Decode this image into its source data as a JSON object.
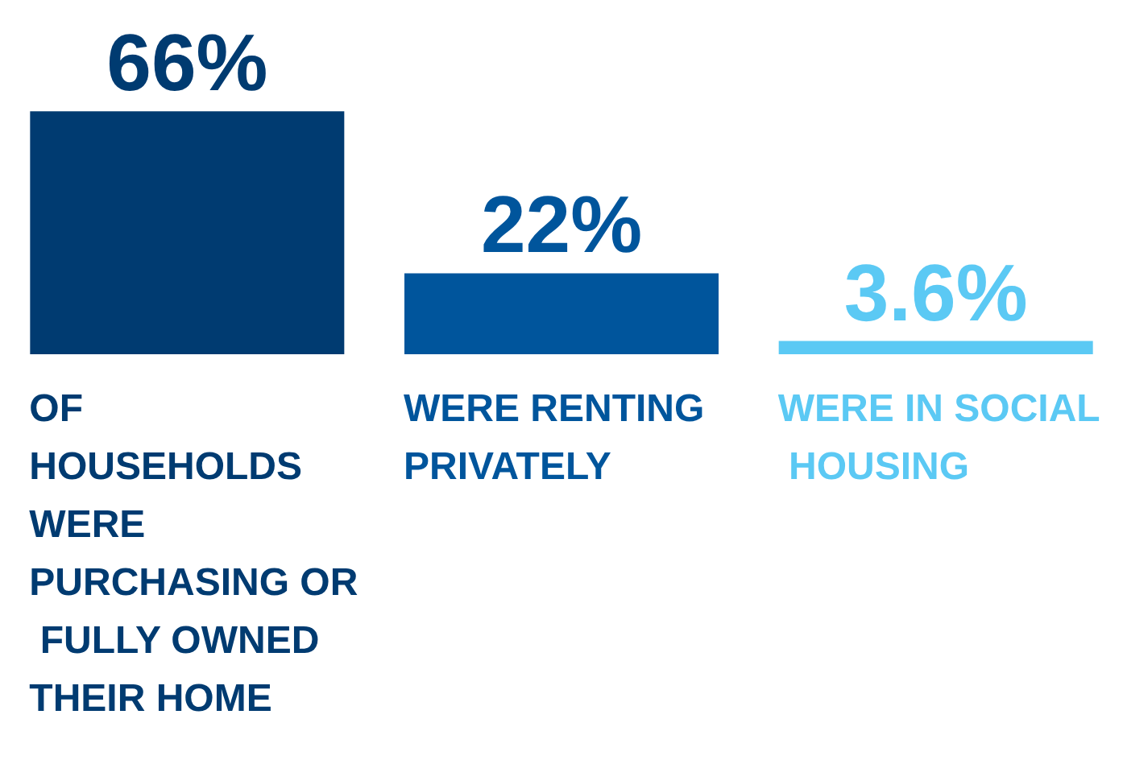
{
  "chart_data": {
    "type": "bar",
    "categories": [
      "OF HOUSEHOLDS WERE PURCHASING OR FULLY OWNED THEIR HOME",
      "WERE RENTING PRIVATELY",
      "WERE IN SOCIAL HOUSING"
    ],
    "values": [
      66,
      22,
      3.6
    ],
    "colors": [
      "#003b71",
      "#00559c",
      "#5bc9f4"
    ],
    "value_labels": [
      "66%",
      "22%",
      "3.6%"
    ]
  }
}
